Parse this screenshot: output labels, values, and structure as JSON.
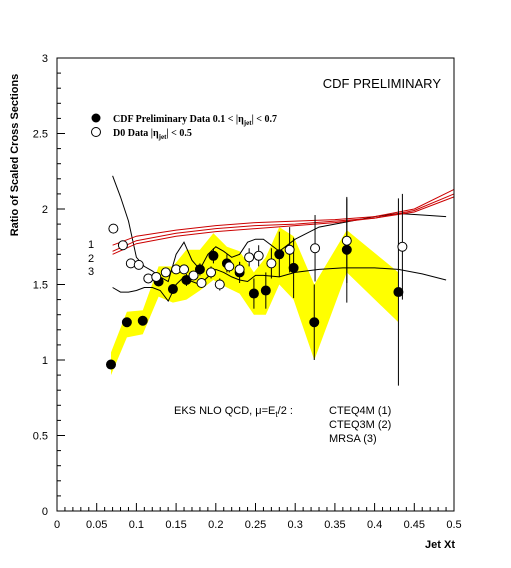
{
  "chart_data": {
    "type": "scatter",
    "title": "CDF PRELIMINARY",
    "xlabel": "Jet Xt",
    "ylabel": "Ratio of Scaled Cross Sections",
    "xlim": [
      0,
      0.5
    ],
    "ylim": [
      0,
      3
    ],
    "grid": false,
    "legend_position": "top-left",
    "x_ticks": [
      "0",
      "0.05",
      "0.1",
      "0.15",
      "0.2",
      "0.25",
      "0.3",
      "0.35",
      "0.4",
      "0.45",
      "0.5"
    ],
    "y_ticks": [
      "0",
      "0.5",
      "1",
      "1.5",
      "2",
      "2.5",
      "3"
    ],
    "legend": [
      {
        "marker": "filled-circle",
        "label": "CDF Preliminary Data 0.1 < |η",
        "sub": "jet",
        "label_end": "| < 0.7"
      },
      {
        "marker": "open-circle",
        "label": "D0 Data |η",
        "sub": "jet",
        "label_end": "| < 0.5"
      }
    ],
    "annotation": {
      "prefix": "EKS NLO QCD, μ=E",
      "sub": "t",
      "suffix": "/2 :",
      "lines": [
        "CTEQ4M (1)",
        "CTEQ3M (2)",
        "MRSA (3)"
      ]
    },
    "curve_labels": [
      "1",
      "2",
      "3"
    ],
    "series": [
      {
        "name": "CDF Preliminary Data",
        "marker": "filled-circle",
        "points": [
          {
            "x": 0.068,
            "y": 0.97,
            "err": 0.02
          },
          {
            "x": 0.088,
            "y": 1.25,
            "err": 0.02
          },
          {
            "x": 0.108,
            "y": 1.26,
            "err": 0.02
          },
          {
            "x": 0.128,
            "y": 1.52,
            "err": 0.03
          },
          {
            "x": 0.146,
            "y": 1.47,
            "err": 0.03
          },
          {
            "x": 0.163,
            "y": 1.53,
            "err": 0.04
          },
          {
            "x": 0.18,
            "y": 1.6,
            "err": 0.04
          },
          {
            "x": 0.197,
            "y": 1.69,
            "err": 0.05
          },
          {
            "x": 0.214,
            "y": 1.64,
            "err": 0.06
          },
          {
            "x": 0.23,
            "y": 1.58,
            "err": 0.07
          },
          {
            "x": 0.248,
            "y": 1.44,
            "err": 0.1
          },
          {
            "x": 0.263,
            "y": 1.46,
            "err": 0.12
          },
          {
            "x": 0.28,
            "y": 1.7,
            "err": 0.15
          },
          {
            "x": 0.298,
            "y": 1.61,
            "err": 0.2
          },
          {
            "x": 0.324,
            "y": 1.25,
            "err": 0.25
          },
          {
            "x": 0.365,
            "y": 1.73,
            "err": 0.35
          },
          {
            "x": 0.43,
            "y": 1.45,
            "err": 0.62
          }
        ]
      },
      {
        "name": "D0 Data",
        "marker": "open-circle",
        "points": [
          {
            "x": 0.071,
            "y": 1.87,
            "err": 0.0
          },
          {
            "x": 0.083,
            "y": 1.76,
            "err": 0.03
          },
          {
            "x": 0.093,
            "y": 1.64,
            "err": 0.03
          },
          {
            "x": 0.103,
            "y": 1.63,
            "err": 0.03
          },
          {
            "x": 0.115,
            "y": 1.54,
            "err": 0.03
          },
          {
            "x": 0.125,
            "y": 1.55,
            "err": 0.03
          },
          {
            "x": 0.137,
            "y": 1.58,
            "err": 0.03
          },
          {
            "x": 0.15,
            "y": 1.6,
            "err": 0.03
          },
          {
            "x": 0.16,
            "y": 1.6,
            "err": 0.03
          },
          {
            "x": 0.172,
            "y": 1.56,
            "err": 0.03
          },
          {
            "x": 0.182,
            "y": 1.51,
            "err": 0.03
          },
          {
            "x": 0.194,
            "y": 1.58,
            "err": 0.04
          },
          {
            "x": 0.205,
            "y": 1.5,
            "err": 0.04
          },
          {
            "x": 0.217,
            "y": 1.62,
            "err": 0.04
          },
          {
            "x": 0.23,
            "y": 1.6,
            "err": 0.05
          },
          {
            "x": 0.242,
            "y": 1.68,
            "err": 0.06
          },
          {
            "x": 0.254,
            "y": 1.69,
            "err": 0.07
          },
          {
            "x": 0.27,
            "y": 1.64,
            "err": 0.1
          },
          {
            "x": 0.293,
            "y": 1.73,
            "err": 0.15
          },
          {
            "x": 0.325,
            "y": 1.74,
            "err": 0.22
          },
          {
            "x": 0.365,
            "y": 1.79,
            "err": 0.28
          },
          {
            "x": 0.435,
            "y": 1.75,
            "err": 0.35
          }
        ]
      }
    ],
    "systematic_band": {
      "color": "#ffff00",
      "x": [
        0.068,
        0.088,
        0.108,
        0.128,
        0.146,
        0.163,
        0.18,
        0.197,
        0.214,
        0.23,
        0.248,
        0.263,
        0.28,
        0.298,
        0.324,
        0.365,
        0.43
      ],
      "upper": [
        1.05,
        1.32,
        1.33,
        1.62,
        1.62,
        1.73,
        1.73,
        1.84,
        1.75,
        1.72,
        1.58,
        1.68,
        1.88,
        1.82,
        1.5,
        1.86,
        1.58
      ],
      "lower": [
        0.9,
        1.15,
        1.17,
        1.42,
        1.38,
        1.4,
        1.46,
        1.53,
        1.48,
        1.44,
        1.3,
        1.3,
        1.5,
        1.4,
        1.0,
        1.58,
        1.25
      ]
    },
    "theory_curves": [
      {
        "label": "1",
        "color": "#cc0000",
        "x": [
          0.07,
          0.1,
          0.15,
          0.2,
          0.25,
          0.3,
          0.35,
          0.4,
          0.45,
          0.5
        ],
        "y": [
          1.76,
          1.82,
          1.86,
          1.89,
          1.91,
          1.92,
          1.93,
          1.95,
          2.0,
          2.13
        ]
      },
      {
        "label": "2",
        "color": "#cc0000",
        "x": [
          0.07,
          0.1,
          0.15,
          0.2,
          0.25,
          0.3,
          0.35,
          0.4,
          0.45,
          0.5
        ],
        "y": [
          1.72,
          1.79,
          1.84,
          1.87,
          1.89,
          1.9,
          1.92,
          1.94,
          1.99,
          2.1
        ]
      },
      {
        "label": "3",
        "color": "#cc0000",
        "x": [
          0.07,
          0.1,
          0.15,
          0.2,
          0.25,
          0.3,
          0.35,
          0.4,
          0.45,
          0.5
        ],
        "y": [
          1.7,
          1.77,
          1.82,
          1.85,
          1.87,
          1.89,
          1.91,
          1.94,
          1.98,
          2.08
        ]
      }
    ],
    "theory_uncertainty_curves": [
      {
        "color": "#000000",
        "x": [
          0.07,
          0.08,
          0.09,
          0.1,
          0.11,
          0.12,
          0.13,
          0.14,
          0.15,
          0.16,
          0.17,
          0.18,
          0.19,
          0.2,
          0.21,
          0.22,
          0.23,
          0.24,
          0.25,
          0.26,
          0.28,
          0.3,
          0.33,
          0.36,
          0.4,
          0.43,
          0.46,
          0.49
        ],
        "y": [
          2.22,
          2.08,
          1.92,
          1.68,
          1.62,
          1.59,
          1.55,
          1.52,
          1.7,
          1.78,
          1.66,
          1.6,
          1.7,
          1.75,
          1.72,
          1.68,
          1.7,
          1.78,
          1.8,
          1.8,
          1.72,
          1.8,
          1.88,
          1.91,
          1.95,
          1.97,
          1.96,
          1.95
        ]
      },
      {
        "color": "#000000",
        "x": [
          0.07,
          0.08,
          0.09,
          0.1,
          0.11,
          0.12,
          0.13,
          0.14,
          0.15,
          0.16,
          0.17,
          0.18,
          0.19,
          0.2,
          0.21,
          0.22,
          0.23,
          0.24,
          0.25,
          0.26,
          0.28,
          0.3,
          0.33,
          0.36,
          0.4,
          0.43,
          0.46,
          0.49
        ],
        "y": [
          1.48,
          1.45,
          1.45,
          1.46,
          1.48,
          1.48,
          1.46,
          1.39,
          1.5,
          1.55,
          1.52,
          1.5,
          1.55,
          1.6,
          1.58,
          1.55,
          1.53,
          1.52,
          1.56,
          1.56,
          1.55,
          1.58,
          1.6,
          1.61,
          1.61,
          1.6,
          1.57,
          1.53
        ]
      }
    ]
  }
}
